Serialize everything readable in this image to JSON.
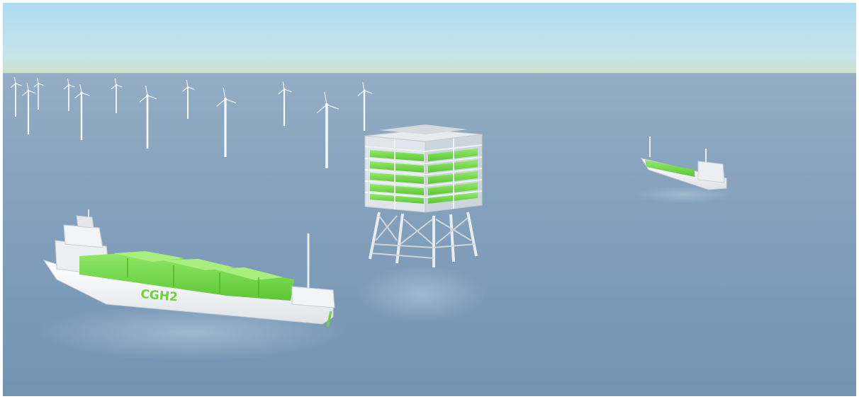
{
  "scene": {
    "ship_hull_text": "CGH2"
  },
  "colors": {
    "sky_top": "#b3dcef",
    "sky_horizon": "#c9e0c9",
    "sea": "#7e9cb8",
    "sea_far": "#8ea8c2",
    "cargo_green": "#74d84a",
    "hull_white": "#f4f6f7",
    "steel": "#d7dde2"
  }
}
